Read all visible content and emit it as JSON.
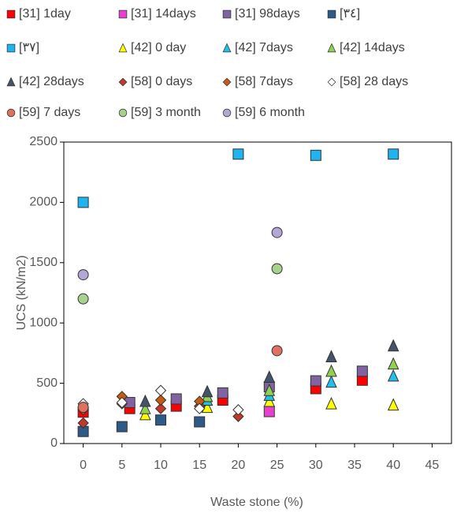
{
  "chart_data": {
    "type": "scatter",
    "xlabel": "Waste stone (%)",
    "ylabel": "UCS (kN/m2)",
    "xlim": [
      -2.5,
      47.5
    ],
    "xticks": [
      0,
      5,
      10,
      15,
      20,
      25,
      30,
      35,
      40,
      45
    ],
    "ylim": [
      0,
      2500
    ],
    "yticks": [
      0,
      500,
      1000,
      1500,
      2000,
      2500
    ],
    "legend": "top",
    "series": [
      {
        "name": "[31] 1day",
        "color": "#ff0000",
        "marker": "square",
        "x": [
          0,
          6,
          12,
          18,
          30,
          36
        ],
        "values": [
          260,
          290,
          310,
          360,
          455,
          525
        ]
      },
      {
        "name": "[31] 14days",
        "color": "#e83fcf",
        "marker": "square",
        "x": [
          24
        ],
        "values": [
          265
        ]
      },
      {
        "name": "[31] 98days",
        "color": "#8064a2",
        "marker": "square",
        "x": [
          6,
          12,
          18,
          24,
          30,
          36
        ],
        "values": [
          340,
          370,
          420,
          470,
          520,
          600
        ]
      },
      {
        "name": "[٣٤]",
        "color": "#2e5a88",
        "marker": "square",
        "x": [
          0,
          5,
          10,
          15
        ],
        "values": [
          100,
          140,
          195,
          180
        ]
      },
      {
        "name": "[٣٧]",
        "color": "#1eb4f0",
        "marker": "square",
        "x": [
          0,
          20,
          30,
          40
        ],
        "values": [
          2000,
          2400,
          2390,
          2400
        ]
      },
      {
        "name": "[42] 0 day",
        "color": "#ffff00",
        "marker": "triangle",
        "x": [
          8,
          16,
          24,
          32,
          40
        ],
        "values": [
          240,
          300,
          350,
          330,
          320
        ]
      },
      {
        "name": "[42] 7days",
        "color": "#22c0e8",
        "marker": "triangle",
        "x": [
          16,
          24,
          32,
          40
        ],
        "values": [
          360,
          400,
          510,
          560
        ]
      },
      {
        "name": "[42] 14days",
        "color": "#92d050",
        "marker": "triangle",
        "x": [
          8,
          16,
          24,
          32,
          40
        ],
        "values": [
          290,
          390,
          440,
          600,
          660
        ]
      },
      {
        "name": "[42] 28days",
        "color": "#44546a",
        "marker": "triangle",
        "x": [
          8,
          16,
          24,
          32,
          40
        ],
        "values": [
          350,
          430,
          550,
          720,
          810
        ]
      },
      {
        "name": "[58] 0 days",
        "color": "#c0392b",
        "marker": "diamond",
        "x": [
          0,
          5,
          10,
          15,
          20
        ],
        "values": [
          170,
          330,
          290,
          310,
          225
        ]
      },
      {
        "name": "[58] 7days",
        "color": "#c55a11",
        "marker": "diamond",
        "x": [
          0,
          5,
          10,
          15
        ],
        "values": [
          280,
          390,
          360,
          350
        ]
      },
      {
        "name": "[58] 28 days",
        "color": "#ffffff",
        "marker": "diamond",
        "x": [
          0,
          5,
          10,
          15,
          20
        ],
        "values": [
          330,
          340,
          440,
          290,
          280
        ]
      },
      {
        "name": "[59] 7 days",
        "color": "#e07060",
        "marker": "circle",
        "x": [
          0,
          25
        ],
        "values": [
          300,
          770
        ]
      },
      {
        "name": "[59] 3 month",
        "color": "#a9d18e",
        "marker": "circle",
        "x": [
          0,
          25
        ],
        "values": [
          1200,
          1450
        ]
      },
      {
        "name": "[59] 6 month",
        "color": "#b4a7d6",
        "marker": "circle",
        "x": [
          0,
          25
        ],
        "values": [
          1400,
          1750
        ]
      }
    ]
  }
}
